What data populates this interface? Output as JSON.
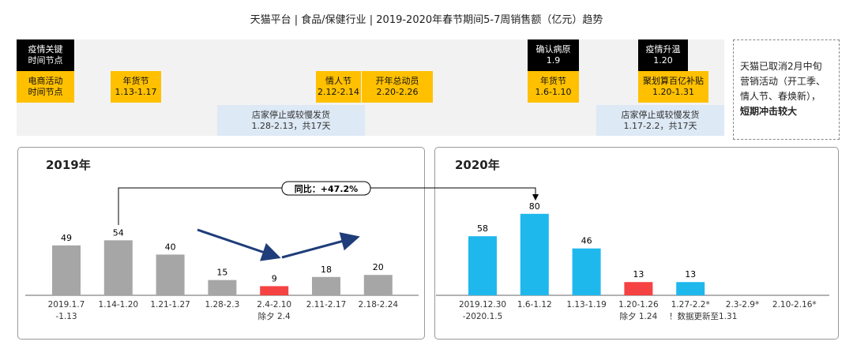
{
  "title": "天猫平台 | 食品/保健行业 | 2019-2020年春节期间5-7周销售额（亿元）趋势",
  "timeline": {
    "epidemic_label": [
      "疫情关键",
      "时间节点"
    ],
    "ecom_label": [
      "电商活动",
      "时间节点"
    ],
    "events_2019": [
      {
        "name": "年货节",
        "date": "1.13-1.17"
      },
      {
        "name": "情人节",
        "date": "2.12-2.14"
      },
      {
        "name": "开年总动员",
        "date": "2.20-2.26"
      }
    ],
    "shipping_2019": {
      "name": "店家停止或较慢发货",
      "date": "1.28-2.13，共17天"
    },
    "epidemic_2020": [
      {
        "name": "确认病原",
        "date": "1.9"
      },
      {
        "name": "疫情升温",
        "date": "1.20"
      }
    ],
    "events_2020": [
      {
        "name": "年货节",
        "date": "1.6-1.10"
      },
      {
        "name": "聚划算百亿补贴",
        "date": "1.20-1.31"
      }
    ],
    "shipping_2020": {
      "name": "店家停止或较慢发货",
      "date": "1.17-2.2，共17天"
    }
  },
  "note": {
    "lines": [
      "天猫已取消2月中旬",
      "营销活动（开工季、",
      "情人节、春焕新），"
    ],
    "bold": "短期冲击较大"
  },
  "colors": {
    "gray": "#a6a6a6",
    "blue": "#1fb8ed",
    "red": "#f54242",
    "navy": "#1f3d7a",
    "yellow": "#ffc000"
  },
  "chart_data": [
    {
      "type": "bar",
      "title": "2019年",
      "categories": [
        "2019.1.7\n-1.13",
        "1.14-1.20",
        "1.21-1.27",
        "1.28-2.3",
        "2.4-2.10\n除夕 2.4",
        "2.11-2.17",
        "2.18-2.24"
      ],
      "values": [
        49,
        54,
        40,
        15,
        9,
        18,
        20
      ],
      "highlight_index": 4
    },
    {
      "type": "bar",
      "title": "2020年",
      "categories": [
        "2019.12.30\n-2020.1.5",
        "1.6-1.12",
        "1.13-1.19",
        "1.20-1.26\n除夕 1.24",
        "1.27-2.2*\n！数据更新至1.31",
        "2.3-2.9*",
        "2.10-2.16*"
      ],
      "values": [
        58,
        80,
        46,
        13,
        13,
        null,
        null
      ],
      "highlight_index": 3
    }
  ],
  "yoy_label": "同比：+47.2%"
}
